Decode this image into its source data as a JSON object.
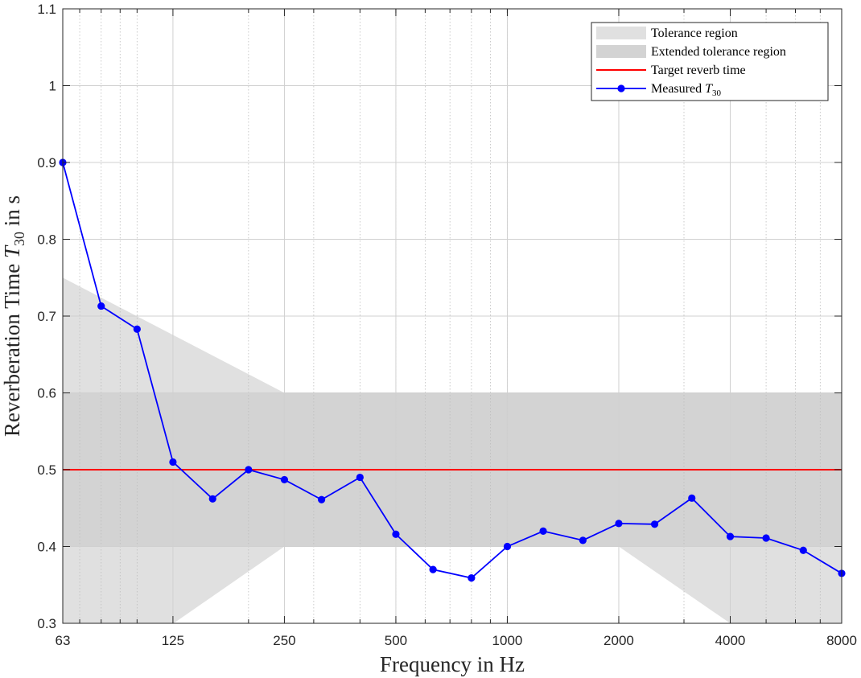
{
  "chart_data": {
    "type": "line",
    "xscale": "log",
    "xlim": [
      63,
      8000
    ],
    "ylim": [
      0.3,
      1.1
    ],
    "xlabel": "Frequency in Hz",
    "ylabel_prefix": "Reverberation Time ",
    "ylabel_var": "T",
    "ylabel_sub": "30",
    "ylabel_suffix": " in s",
    "x_ticks": [
      63,
      125,
      250,
      500,
      1000,
      2000,
      4000,
      8000
    ],
    "x_tick_labels": [
      "63",
      "125",
      "250",
      "500",
      "1000",
      "2000",
      "4000",
      "8000"
    ],
    "y_ticks": [
      0.3,
      0.4,
      0.5,
      0.6,
      0.7,
      0.8,
      0.9,
      1.0,
      1.1
    ],
    "y_tick_labels": [
      "0.3",
      "0.4",
      "0.5",
      "0.6",
      "0.7",
      "0.8",
      "0.9",
      "1",
      "1.1"
    ],
    "grid": true,
    "legend_position": "top-right",
    "legend": [
      {
        "label": "Tolerance region"
      },
      {
        "label": "Extended tolerance region"
      },
      {
        "label": "Target reverb time"
      },
      {
        "label_prefix": "Measured ",
        "label_var": "T",
        "label_sub": "30"
      }
    ],
    "tolerance_region": {
      "color": "#e0e0e0",
      "upper": [
        [
          63,
          0.75
        ],
        [
          250,
          0.6
        ],
        [
          8000,
          0.6
        ]
      ],
      "lower": [
        [
          63,
          0.2
        ],
        [
          250,
          0.4
        ],
        [
          2000,
          0.4
        ],
        [
          8000,
          0.2
        ]
      ]
    },
    "extended_tolerance_region": {
      "color": "#d3d3d3",
      "x": [
        63,
        8000
      ],
      "y": [
        0.4,
        0.6
      ]
    },
    "target": {
      "value": 0.5,
      "color": "#ff0000"
    },
    "series": [
      {
        "color": "#0000ff",
        "x": [
          63,
          80,
          100,
          125,
          160,
          200,
          250,
          315,
          400,
          500,
          630,
          800,
          1000,
          1250,
          1600,
          2000,
          2500,
          3150,
          4000,
          5000,
          6300,
          8000
        ],
        "y": [
          0.9,
          0.713,
          0.683,
          0.51,
          0.462,
          0.5,
          0.487,
          0.461,
          0.49,
          0.416,
          0.37,
          0.359,
          0.4,
          0.42,
          0.408,
          0.43,
          0.429,
          0.463,
          0.413,
          0.411,
          0.395,
          0.365
        ]
      }
    ]
  }
}
